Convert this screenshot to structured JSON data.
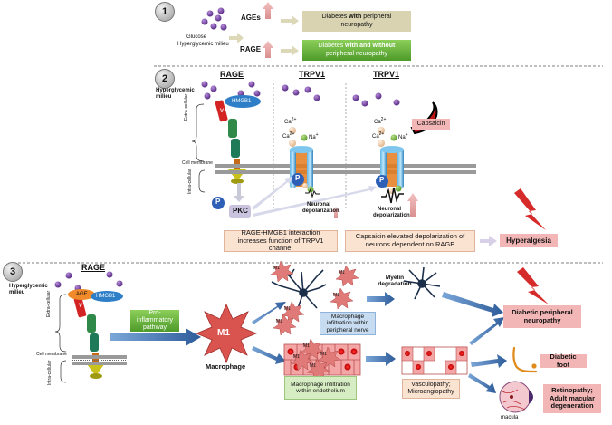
{
  "panel1": {
    "number": "1",
    "glucose": "Glucose",
    "milieu": "Hyperglycemic milieu",
    "ages": "AGEs",
    "rage": "RAGE",
    "box_ages_pre": "Diabetes ",
    "box_ages_bold": "with",
    "box_ages_post": " peripheral neuropathy",
    "box_rage_pre": "Diabetes ",
    "box_rage_bold": "with and without",
    "box_rage_post": " peripheral neuropathy"
  },
  "panel2": {
    "number": "2",
    "milieu": "Hyperglycemic milieu",
    "rage_title": "RAGE",
    "trpv1_title": "TRPV1",
    "trpv1_title_2": "TRPV1",
    "hmgb1": "HMGB1",
    "v": "V",
    "extra": "Extra-cellular",
    "cell_membrane": "Cell membrane",
    "intra": "Intra-cellular",
    "ca": "Ca",
    "ca_sup": "2+",
    "na": "Na",
    "na_sup": "+",
    "p": "P",
    "pkc": "PKC",
    "depol": "Neuronal depolarization",
    "depol_2": "Neuronal depolarization",
    "capsaicin": "Capsaicin",
    "box_left": "RAGE-HMGB1 interaction increases function of TRPV1 channel",
    "box_right": "Capsaicin elevated depolarization of neurons dependent on RAGE",
    "hyperalgesia": "Hyperalgesia"
  },
  "panel3": {
    "number": "3",
    "rage_title": "RAGE",
    "milieu": "Hyperglycemic milieu",
    "age": "AGE",
    "hmgb1": "HMGB1",
    "v": "V",
    "extra": "Extra-cellular",
    "cell_membrane": "Cell membrane",
    "intra": "Intra-cellular",
    "pathway": "Pro-inflammatory pathway",
    "m1": "M1",
    "macrophage": "Macrophage",
    "myelin": "Myelin degradation",
    "nerve_box": "Macrophage infiltration within peripheral nerve",
    "endo_box": "Macrophage infiltration within endothelium",
    "vascu_box": "Vasculopathy; Microangiopathy",
    "dpn": "Diabetic peripheral neuropathy",
    "foot": "Diabetic foot",
    "retino": "Retinopathy; Adult macular degeneration",
    "macula": "macula"
  },
  "colors": {
    "purple": "#6a3d9a",
    "khaki_box": "#d9d3b2",
    "green_box": "#6ab04c",
    "pink_box": "#f2b6b6",
    "cream_box": "#fbe3d2",
    "blue_box": "#c7dcf1",
    "lightgreen_box": "#d6ecc2",
    "arrow_blue": "#4a7ab8",
    "arrow_pink": "#e8a0a0",
    "red": "#d62b2b"
  }
}
